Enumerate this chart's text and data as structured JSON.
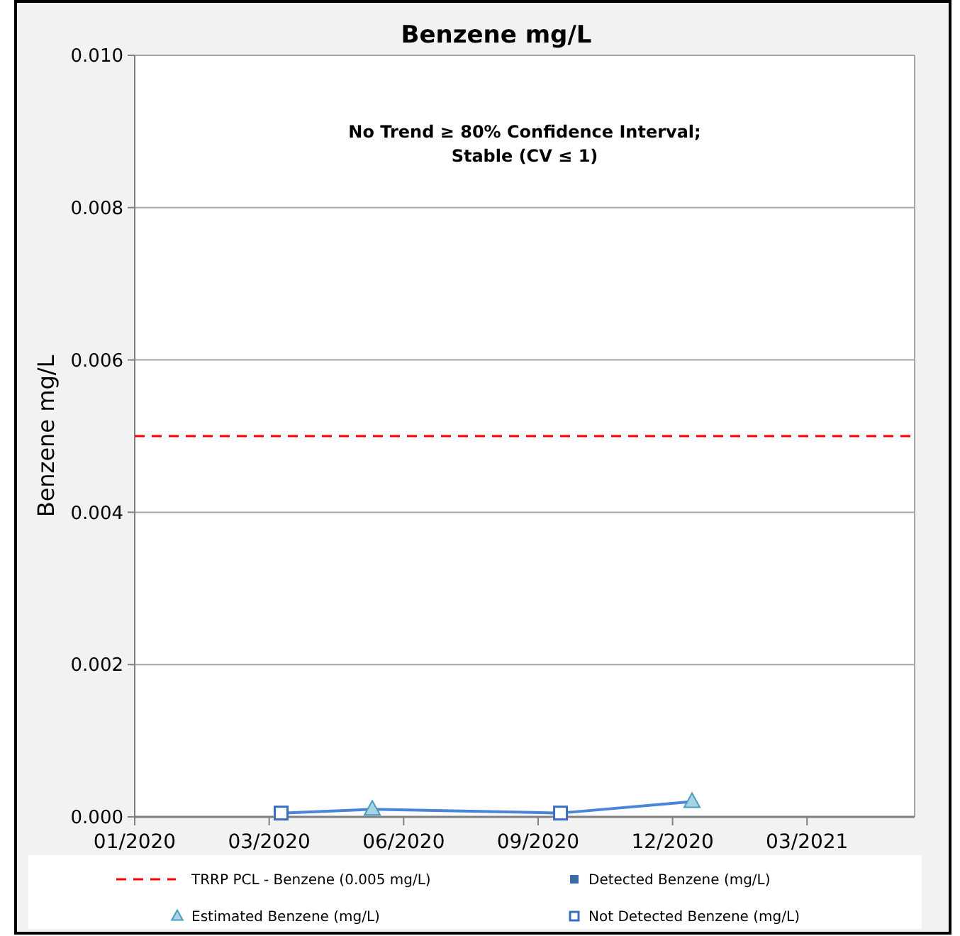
{
  "chart_data": {
    "type": "line",
    "title": "Benzene mg/L",
    "ylabel": "Benzene mg/L",
    "annotations": [
      "No Trend ≥ 80% Confidence Interval;",
      "Stable (CV ≤ 1)"
    ],
    "xlim": [
      "2020-01-01",
      "2021-06-06"
    ],
    "xticks": [
      {
        "value": "2020-01-01",
        "label": "01/2020"
      },
      {
        "value": "2020-03-31",
        "label": "03/2020"
      },
      {
        "value": "2020-06-29",
        "label": "06/2020"
      },
      {
        "value": "2020-09-27",
        "label": "09/2020"
      },
      {
        "value": "2020-12-26",
        "label": "12/2020"
      },
      {
        "value": "2021-03-26",
        "label": "03/2021"
      }
    ],
    "ylim": [
      0,
      0.01
    ],
    "yticks": [
      {
        "value": 0,
        "label": "0.000"
      },
      {
        "value": 0.002,
        "label": "0.002"
      },
      {
        "value": 0.004,
        "label": "0.004"
      },
      {
        "value": 0.006,
        "label": "0.006"
      },
      {
        "value": 0.008,
        "label": "0.008"
      },
      {
        "value": 0.01,
        "label": "0.010"
      }
    ],
    "grid": "y",
    "legend": "bottom",
    "ref_lines": [
      {
        "axis": "y",
        "value": 0.005,
        "label": "TRRP PCL - Benzene (0.005 mg/L)",
        "color": "#ff0000",
        "line_style": "dashed"
      }
    ],
    "series": [
      {
        "color": "#4a86d8",
        "marker": "none",
        "x": [
          "2020-04-08",
          "2020-06-08",
          "2020-10-12",
          "2021-01-08"
        ],
        "values": [
          5e-05,
          0.0001,
          5e-05,
          0.0002
        ]
      },
      {
        "type": "scatter",
        "name": "Detected Benzene (mg/L)",
        "color": "#3a6aa8",
        "marker": "square"
      },
      {
        "type": "scatter",
        "name": "Estimated Benzene (mg/L)",
        "color": "#a9d2e4",
        "marker": "triangle",
        "x": [
          "2020-06-08",
          "2021-01-08"
        ],
        "values": [
          0.0001,
          0.0002
        ]
      },
      {
        "type": "scatter",
        "name": "Not Detected Benzene (mg/L)",
        "color": "#3a6fc0",
        "marker": "square",
        "x": [
          "2020-04-08",
          "2020-10-12"
        ],
        "values": [
          5e-05,
          5e-05
        ]
      }
    ]
  }
}
